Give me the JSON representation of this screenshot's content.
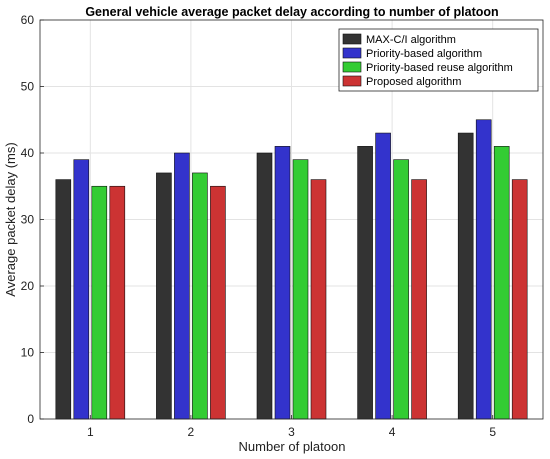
{
  "chart_data": {
    "type": "bar",
    "title": "General vehicle average packet delay according to number of platoon",
    "xlabel": "Number of platoon",
    "ylabel": "Average packet delay (ms)",
    "categories": [
      "1",
      "2",
      "3",
      "4",
      "5"
    ],
    "ylim": [
      0,
      60
    ],
    "yticks": [
      0,
      10,
      20,
      30,
      40,
      50,
      60
    ],
    "grid": true,
    "legend_position": "top-right",
    "series": [
      {
        "name": "MAX-C/I algorithm",
        "color": "#333333",
        "values": [
          36,
          37,
          40,
          41,
          43
        ]
      },
      {
        "name": "Priority-based algorithm",
        "color": "#3333cc",
        "values": [
          39,
          40,
          41,
          43,
          45
        ]
      },
      {
        "name": "Priority-based reuse algorithm",
        "color": "#33cc33",
        "values": [
          35,
          37,
          39,
          39,
          41
        ]
      },
      {
        "name": "Proposed algorithm",
        "color": "#cc3333",
        "values": [
          35,
          35,
          36,
          36,
          36
        ]
      }
    ]
  }
}
